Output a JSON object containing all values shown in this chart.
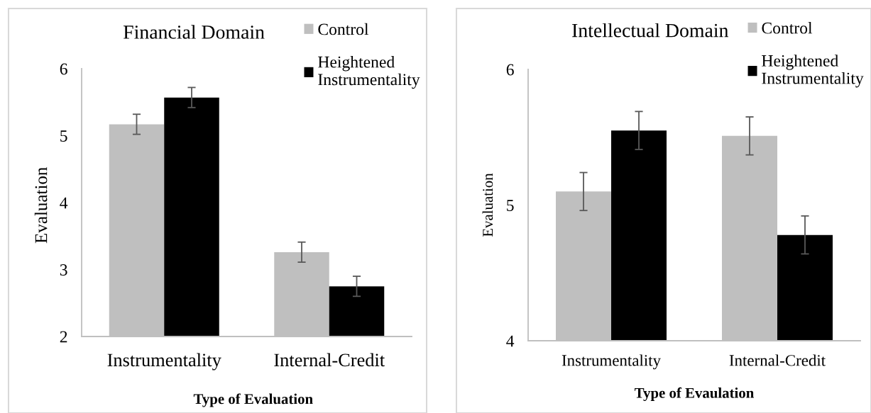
{
  "chart_data": [
    {
      "type": "bar",
      "title": "Financial Domain",
      "xlabel": "Type of Evaluation",
      "ylabel": "Evaluation",
      "categories": [
        "Instrumentality",
        "Internal-Credit"
      ],
      "series": [
        {
          "name": "Control",
          "color": "#bfbfbf",
          "values": [
            5.17,
            3.26
          ],
          "errors": [
            0.15,
            0.15
          ]
        },
        {
          "name": "Heightened Instrumentality",
          "color": "#000000",
          "values": [
            5.57,
            2.75
          ],
          "errors": [
            0.15,
            0.15
          ]
        }
      ],
      "ylim": [
        2,
        6
      ],
      "yticks": [
        2,
        3,
        4,
        5,
        6
      ],
      "grid": false,
      "legend": "top right"
    },
    {
      "type": "bar",
      "title": "Intellectual Domain",
      "xlabel": "Type of Evaulation",
      "ylabel": "Evaluation",
      "categories": [
        "Instrumentality",
        "Internal-Credit"
      ],
      "series": [
        {
          "name": "Control",
          "color": "#bfbfbf",
          "values": [
            5.1,
            5.51
          ],
          "errors": [
            0.14,
            0.14
          ]
        },
        {
          "name": "Heightened Instrumentality",
          "color": "#000000",
          "values": [
            5.55,
            4.78
          ],
          "errors": [
            0.14,
            0.14
          ]
        }
      ],
      "ylim": [
        4,
        6
      ],
      "yticks": [
        4,
        5,
        6
      ],
      "grid": false,
      "legend": "top right"
    }
  ]
}
